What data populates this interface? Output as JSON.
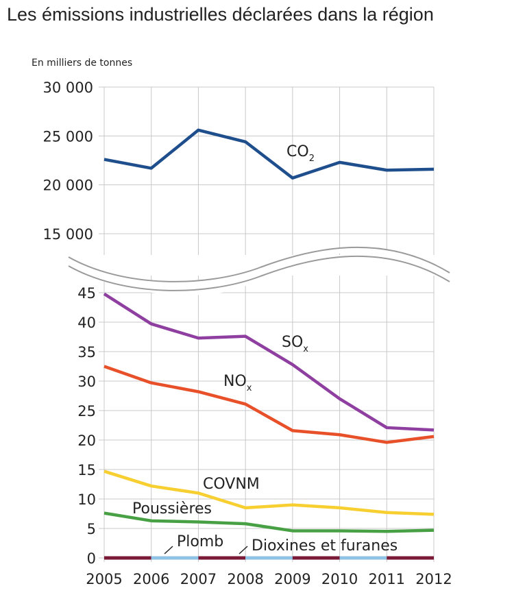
{
  "title": "Les émissions industrielles déclarées dans la région",
  "chart_data": {
    "type": "line",
    "title": "Les émissions industrielles déclarées dans la région",
    "ylabel": "En milliers de tonnes",
    "x": [
      2005,
      2006,
      2007,
      2008,
      2009,
      2010,
      2011,
      2012
    ],
    "broken_axis": true,
    "upper_panel": {
      "ylim": [
        15000,
        30000
      ],
      "yticks": [
        "30 000",
        "25 000",
        "20 000",
        "15 000"
      ],
      "series": [
        {
          "name": "CO2",
          "label_main": "CO",
          "label_sub": "2",
          "color": "#1f4e8c",
          "values": [
            22600,
            21700,
            25600,
            24400,
            20700,
            22300,
            21500,
            21600
          ]
        }
      ]
    },
    "lower_panel": {
      "ylim": [
        0,
        45
      ],
      "yticks": [
        "45",
        "40",
        "35",
        "30",
        "25",
        "20",
        "15",
        "10",
        "5",
        "0"
      ],
      "series": [
        {
          "name": "SOx",
          "label_main": "SO",
          "label_sub": "x",
          "color": "#8e3fa0",
          "values": [
            44.8,
            39.7,
            37.3,
            37.6,
            32.8,
            27.0,
            22.1,
            21.7
          ]
        },
        {
          "name": "NOx",
          "label_main": "NO",
          "label_sub": "x",
          "color": "#e8502a",
          "values": [
            32.5,
            29.7,
            28.2,
            26.1,
            21.6,
            20.9,
            19.6,
            20.6
          ]
        },
        {
          "name": "COVNM",
          "label_main": "COVNM",
          "label_sub": "",
          "color": "#f7cf31",
          "values": [
            14.7,
            12.2,
            11.0,
            8.5,
            9.0,
            8.5,
            7.7,
            7.4
          ]
        },
        {
          "name": "Poussières",
          "label_main": "Poussières",
          "label_sub": "",
          "color": "#48a044",
          "values": [
            7.6,
            6.3,
            6.1,
            5.8,
            4.6,
            4.6,
            4.5,
            4.7
          ]
        },
        {
          "name": "Plomb",
          "label_main": "Plomb",
          "label_sub": "",
          "color": "#8fc3e6",
          "values": [
            0,
            0,
            0,
            0,
            0,
            0,
            0,
            0
          ]
        },
        {
          "name": "Dioxines et furanes",
          "label_main": "Dioxines et furanes",
          "label_sub": "",
          "color": "#7a1a36",
          "values": [
            0,
            0,
            0,
            0,
            0,
            0,
            0,
            0
          ]
        }
      ]
    },
    "grid": true
  }
}
